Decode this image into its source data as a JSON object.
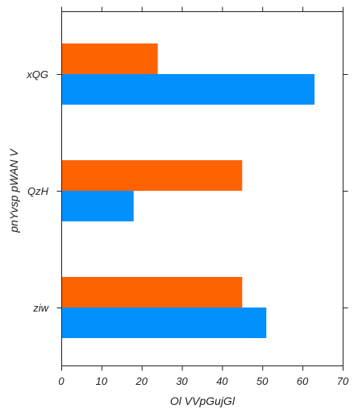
{
  "chart_data": {
    "type": "bar",
    "orientation": "horizontal",
    "categories": [
      "ziw",
      "QzH",
      "xQG"
    ],
    "series": [
      {
        "color": "#0390ff",
        "values": [
          51,
          18,
          63
        ]
      },
      {
        "color": "#ff6200",
        "values": [
          45,
          45,
          24
        ]
      }
    ],
    "xlabel": "Ol VVpGujGl",
    "ylabel": "pnYvsp pWAN V",
    "xlim": [
      0,
      70
    ],
    "xticks": [
      0,
      10,
      20,
      30,
      40,
      50,
      60,
      70
    ],
    "grid": false,
    "legend": "none"
  }
}
